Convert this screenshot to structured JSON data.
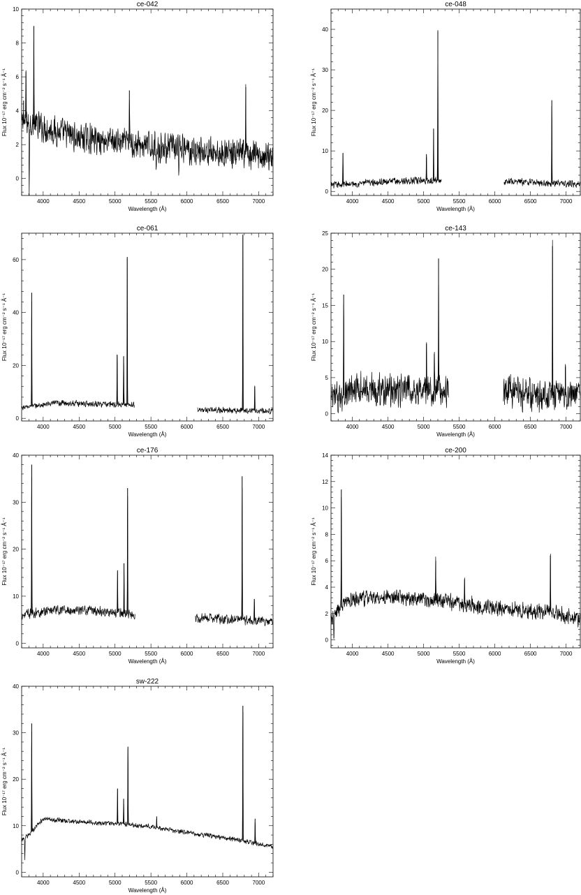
{
  "figure": {
    "x_label": "Wavelength (Å)",
    "y_label": "Flux 10⁻¹⁷ erg cm⁻² s⁻¹ Å⁻¹",
    "line_color": "#000000",
    "background": "#ffffff"
  },
  "chart_data": [
    {
      "type": "line",
      "title": "ce-042",
      "xlim": [
        3700,
        7200
      ],
      "ylim": [
        -1,
        10
      ],
      "xticks": [
        4000,
        4500,
        5000,
        5500,
        6000,
        6500,
        7000
      ],
      "yticks": [
        0,
        2,
        4,
        6,
        8,
        10
      ],
      "gaps": [],
      "continuum": [
        [
          3700,
          3.2
        ],
        [
          3800,
          3.3
        ],
        [
          4000,
          3.0
        ],
        [
          4500,
          2.4
        ],
        [
          5000,
          2.2
        ],
        [
          5500,
          1.9
        ],
        [
          6000,
          1.7
        ],
        [
          6500,
          1.5
        ],
        [
          7200,
          1.3
        ]
      ],
      "noise": 1.0,
      "lines": [
        {
          "x": 3727,
          "y": 4.6
        },
        {
          "x": 3760,
          "y": 6.3
        },
        {
          "x": 3870,
          "y": 9.0
        },
        {
          "x": 5200,
          "y": 5.2
        },
        {
          "x": 6820,
          "y": 5.4
        }
      ],
      "dips": [
        {
          "x": 3805,
          "y": -1.0
        },
        {
          "x": 5575,
          "y": 0.3
        },
        {
          "x": 5890,
          "y": 0.2
        }
      ]
    },
    {
      "type": "line",
      "title": "ce-048",
      "xlim": [
        3700,
        7200
      ],
      "ylim": [
        -1,
        45
      ],
      "xticks": [
        4000,
        4500,
        5000,
        5500,
        6000,
        6500,
        7000
      ],
      "yticks": [
        0,
        10,
        20,
        30,
        40
      ],
      "gaps": [
        [
          5250,
          6130
        ]
      ],
      "continuum": [
        [
          3700,
          1.5
        ],
        [
          4500,
          2.5
        ],
        [
          5200,
          2.7
        ],
        [
          6130,
          2.5
        ],
        [
          7200,
          1.8
        ]
      ],
      "noise": 1.0,
      "lines": [
        {
          "x": 3868,
          "y": 9.5
        },
        {
          "x": 5040,
          "y": 9.2
        },
        {
          "x": 5140,
          "y": 15.5
        },
        {
          "x": 5200,
          "y": 39.5
        },
        {
          "x": 6800,
          "y": 22.5
        }
      ],
      "dips": []
    },
    {
      "type": "line",
      "title": "ce-061",
      "xlim": [
        3700,
        7200
      ],
      "ylim": [
        -1,
        70
      ],
      "xticks": [
        4000,
        4500,
        5000,
        5500,
        6000,
        6500,
        7000
      ],
      "yticks": [
        0,
        20,
        40,
        60
      ],
      "gaps": [
        [
          5270,
          6150
        ]
      ],
      "continuum": [
        [
          3700,
          4.0
        ],
        [
          4200,
          5.8
        ],
        [
          4700,
          5.5
        ],
        [
          5270,
          5.0
        ],
        [
          6150,
          3.2
        ],
        [
          7200,
          2.8
        ]
      ],
      "noise": 1.3,
      "lines": [
        {
          "x": 3840,
          "y": 47.5
        },
        {
          "x": 5030,
          "y": 24.0
        },
        {
          "x": 5120,
          "y": 23.5
        },
        {
          "x": 5170,
          "y": 61.0
        },
        {
          "x": 6780,
          "y": 69.5
        },
        {
          "x": 6945,
          "y": 12.0
        }
      ],
      "dips": []
    },
    {
      "type": "line",
      "title": "ce-143",
      "xlim": [
        3700,
        7200
      ],
      "ylim": [
        -1,
        25
      ],
      "xticks": [
        4000,
        4500,
        5000,
        5500,
        6000,
        6500,
        7000
      ],
      "yticks": [
        0,
        5,
        10,
        15,
        20,
        25
      ],
      "gaps": [
        [
          5350,
          6120
        ]
      ],
      "continuum": [
        [
          3700,
          1.8
        ],
        [
          4100,
          3.5
        ],
        [
          4700,
          3.2
        ],
        [
          5350,
          3.2
        ],
        [
          6120,
          3.1
        ],
        [
          6600,
          2.5
        ],
        [
          7200,
          2.6
        ]
      ],
      "noise": 2.6,
      "lines": [
        {
          "x": 3878,
          "y": 16.5
        },
        {
          "x": 5040,
          "y": 9.7
        },
        {
          "x": 5150,
          "y": 8.3
        },
        {
          "x": 5210,
          "y": 21.5
        },
        {
          "x": 6810,
          "y": 23.2
        },
        {
          "x": 6990,
          "y": 6.5
        }
      ],
      "dips": []
    },
    {
      "type": "line",
      "title": "ce-176",
      "xlim": [
        3700,
        7200
      ],
      "ylim": [
        -1,
        40
      ],
      "xticks": [
        4000,
        4500,
        5000,
        5500,
        6000,
        6500,
        7000
      ],
      "yticks": [
        0,
        10,
        20,
        30,
        40
      ],
      "gaps": [
        [
          5280,
          6120
        ]
      ],
      "continuum": [
        [
          3700,
          6.0
        ],
        [
          4100,
          7.0
        ],
        [
          4700,
          7.0
        ],
        [
          5280,
          6.0
        ],
        [
          6120,
          5.5
        ],
        [
          7200,
          4.6
        ]
      ],
      "noise": 1.2,
      "lines": [
        {
          "x": 3840,
          "y": 38.0
        },
        {
          "x": 5035,
          "y": 15.5
        },
        {
          "x": 5125,
          "y": 17.0
        },
        {
          "x": 5175,
          "y": 33.0
        },
        {
          "x": 6770,
          "y": 35.5
        },
        {
          "x": 6940,
          "y": 9.4
        }
      ],
      "dips": []
    },
    {
      "type": "line",
      "title": "ce-200",
      "xlim": [
        3700,
        7200
      ],
      "ylim": [
        -0.6,
        14
      ],
      "xticks": [
        4000,
        4500,
        5000,
        5500,
        6000,
        6500,
        7000
      ],
      "yticks": [
        0,
        2,
        4,
        6,
        8,
        10,
        12,
        14
      ],
      "gaps": [],
      "continuum": [
        [
          3700,
          1.4
        ],
        [
          3900,
          2.9
        ],
        [
          4200,
          3.2
        ],
        [
          4800,
          3.2
        ],
        [
          5500,
          2.8
        ],
        [
          6200,
          2.3
        ],
        [
          6800,
          2.1
        ],
        [
          7200,
          1.6
        ]
      ],
      "noise": 0.7,
      "lines": [
        {
          "x": 3845,
          "y": 11.4
        },
        {
          "x": 5170,
          "y": 6.0
        },
        {
          "x": 5575,
          "y": 4.6
        },
        {
          "x": 6780,
          "y": 6.4
        }
      ],
      "dips": [
        {
          "x": 3740,
          "y": 0.3
        }
      ]
    },
    {
      "type": "line",
      "title": "sw-222",
      "xlim": [
        3700,
        7200
      ],
      "ylim": [
        -1,
        40
      ],
      "xticks": [
        4000,
        4500,
        5000,
        5500,
        6000,
        6500,
        7000
      ],
      "yticks": [
        0,
        10,
        20,
        30,
        40
      ],
      "gaps": [],
      "continuum": [
        [
          3700,
          7.0
        ],
        [
          3800,
          8.0
        ],
        [
          4000,
          11.5
        ],
        [
          4500,
          10.8
        ],
        [
          5000,
          10.5
        ],
        [
          5500,
          9.8
        ],
        [
          6000,
          8.5
        ],
        [
          6500,
          7.5
        ],
        [
          7200,
          5.5
        ]
      ],
      "noise": 0.6,
      "lines": [
        {
          "x": 3840,
          "y": 32.0
        },
        {
          "x": 5035,
          "y": 18.0
        },
        {
          "x": 5120,
          "y": 15.8
        },
        {
          "x": 5180,
          "y": 27.0
        },
        {
          "x": 5580,
          "y": 12.0
        },
        {
          "x": 6780,
          "y": 35.8
        },
        {
          "x": 6950,
          "y": 11.5
        }
      ],
      "dips": [
        {
          "x": 3745,
          "y": 2.5
        }
      ]
    }
  ]
}
